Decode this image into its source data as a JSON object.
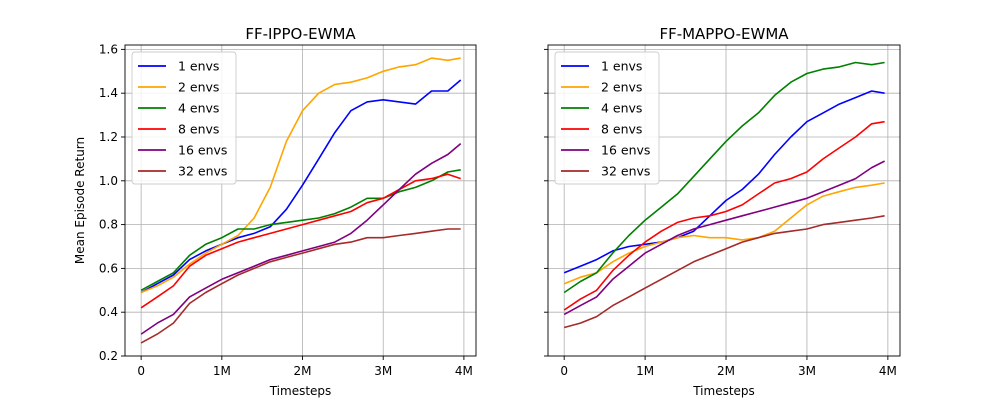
{
  "chart_data": [
    {
      "type": "line",
      "title": "FF-IPPO-EWMA",
      "xlabel": "Timesteps",
      "ylabel": "Mean Episode Return",
      "xlim": [
        -0.2,
        4.15
      ],
      "ylim": [
        0.2,
        1.62
      ],
      "xticks": [
        0,
        1,
        2,
        3,
        4
      ],
      "xtick_labels": [
        "0",
        "1M",
        "2M",
        "3M",
        "4M"
      ],
      "yticks": [
        0.2,
        0.4,
        0.6,
        0.8,
        1.0,
        1.2,
        1.4,
        1.6
      ],
      "ytick_labels": [
        "0.2",
        "0.4",
        "0.6",
        "0.8",
        "1.0",
        "1.2",
        "1.4",
        "1.6"
      ],
      "show_yticklabels": true,
      "grid": true,
      "legend": "top-left",
      "x_units": "million timesteps",
      "series": [
        {
          "name": "1 envs",
          "color": "#0000ff",
          "x": [
            0,
            0.2,
            0.4,
            0.6,
            0.8,
            1.0,
            1.2,
            1.4,
            1.6,
            1.8,
            2.0,
            2.2,
            2.4,
            2.6,
            2.8,
            3.0,
            3.2,
            3.4,
            3.6,
            3.8,
            3.96
          ],
          "y": [
            0.49,
            0.53,
            0.57,
            0.64,
            0.68,
            0.71,
            0.74,
            0.76,
            0.79,
            0.87,
            0.98,
            1.1,
            1.22,
            1.32,
            1.36,
            1.37,
            1.36,
            1.35,
            1.41,
            1.41,
            1.46
          ]
        },
        {
          "name": "2 envs",
          "color": "#ffa500",
          "x": [
            0,
            0.2,
            0.4,
            0.6,
            0.8,
            1.0,
            1.2,
            1.4,
            1.6,
            1.8,
            2.0,
            2.2,
            2.4,
            2.6,
            2.8,
            3.0,
            3.2,
            3.4,
            3.6,
            3.8,
            3.96
          ],
          "y": [
            0.49,
            0.52,
            0.56,
            0.62,
            0.67,
            0.71,
            0.75,
            0.83,
            0.97,
            1.18,
            1.32,
            1.4,
            1.44,
            1.45,
            1.47,
            1.5,
            1.52,
            1.53,
            1.56,
            1.55,
            1.56
          ]
        },
        {
          "name": "4 envs",
          "color": "#008000",
          "x": [
            0,
            0.2,
            0.4,
            0.6,
            0.8,
            1.0,
            1.2,
            1.4,
            1.6,
            1.8,
            2.0,
            2.2,
            2.4,
            2.6,
            2.8,
            3.0,
            3.2,
            3.4,
            3.6,
            3.8,
            3.96
          ],
          "y": [
            0.5,
            0.54,
            0.58,
            0.66,
            0.71,
            0.74,
            0.78,
            0.78,
            0.8,
            0.81,
            0.82,
            0.83,
            0.85,
            0.88,
            0.92,
            0.92,
            0.95,
            0.97,
            1.0,
            1.04,
            1.05
          ]
        },
        {
          "name": "8 envs",
          "color": "#ff0000",
          "x": [
            0,
            0.2,
            0.4,
            0.6,
            0.8,
            1.0,
            1.2,
            1.4,
            1.6,
            1.8,
            2.0,
            2.2,
            2.4,
            2.6,
            2.8,
            3.0,
            3.2,
            3.4,
            3.6,
            3.8,
            3.96
          ],
          "y": [
            0.42,
            0.47,
            0.52,
            0.61,
            0.66,
            0.69,
            0.72,
            0.74,
            0.76,
            0.78,
            0.8,
            0.82,
            0.84,
            0.86,
            0.9,
            0.92,
            0.96,
            1.0,
            1.01,
            1.03,
            1.01
          ]
        },
        {
          "name": "16 envs",
          "color": "#800080",
          "x": [
            0,
            0.2,
            0.4,
            0.6,
            0.8,
            1.0,
            1.2,
            1.4,
            1.6,
            1.8,
            2.0,
            2.2,
            2.4,
            2.6,
            2.8,
            3.0,
            3.2,
            3.4,
            3.6,
            3.8,
            3.96
          ],
          "y": [
            0.3,
            0.35,
            0.39,
            0.47,
            0.51,
            0.55,
            0.58,
            0.61,
            0.64,
            0.66,
            0.68,
            0.7,
            0.72,
            0.76,
            0.82,
            0.89,
            0.96,
            1.03,
            1.08,
            1.12,
            1.17
          ]
        },
        {
          "name": "32 envs",
          "color": "#a52a2a",
          "x": [
            0,
            0.2,
            0.4,
            0.6,
            0.8,
            1.0,
            1.2,
            1.4,
            1.6,
            1.8,
            2.0,
            2.2,
            2.4,
            2.6,
            2.8,
            3.0,
            3.2,
            3.4,
            3.6,
            3.8,
            3.96
          ],
          "y": [
            0.26,
            0.3,
            0.35,
            0.44,
            0.49,
            0.53,
            0.57,
            0.6,
            0.63,
            0.65,
            0.67,
            0.69,
            0.71,
            0.72,
            0.74,
            0.74,
            0.75,
            0.76,
            0.77,
            0.78,
            0.78
          ]
        }
      ]
    },
    {
      "type": "line",
      "title": "FF-MAPPO-EWMA",
      "xlabel": "Timesteps",
      "ylabel": "",
      "xlim": [
        -0.2,
        4.15
      ],
      "ylim": [
        0.2,
        1.62
      ],
      "xticks": [
        0,
        1,
        2,
        3,
        4
      ],
      "xtick_labels": [
        "0",
        "1M",
        "2M",
        "3M",
        "4M"
      ],
      "yticks": [
        0.2,
        0.4,
        0.6,
        0.8,
        1.0,
        1.2,
        1.4,
        1.6
      ],
      "ytick_labels": [
        "",
        "",
        "",
        "",
        "",
        "",
        "",
        ""
      ],
      "show_yticklabels": false,
      "grid": true,
      "legend": "top-left",
      "x_units": "million timesteps",
      "series": [
        {
          "name": "1 envs",
          "color": "#0000ff",
          "x": [
            0,
            0.2,
            0.4,
            0.6,
            0.8,
            1.0,
            1.2,
            1.4,
            1.6,
            1.8,
            2.0,
            2.2,
            2.4,
            2.6,
            2.8,
            3.0,
            3.2,
            3.4,
            3.6,
            3.8,
            3.96
          ],
          "y": [
            0.58,
            0.61,
            0.64,
            0.68,
            0.7,
            0.71,
            0.72,
            0.74,
            0.77,
            0.84,
            0.91,
            0.96,
            1.03,
            1.12,
            1.2,
            1.27,
            1.31,
            1.35,
            1.38,
            1.41,
            1.4
          ]
        },
        {
          "name": "2 envs",
          "color": "#ffa500",
          "x": [
            0,
            0.2,
            0.4,
            0.6,
            0.8,
            1.0,
            1.2,
            1.4,
            1.6,
            1.8,
            2.0,
            2.2,
            2.4,
            2.6,
            2.8,
            3.0,
            3.2,
            3.4,
            3.6,
            3.8,
            3.96
          ],
          "y": [
            0.53,
            0.56,
            0.58,
            0.63,
            0.67,
            0.7,
            0.72,
            0.74,
            0.75,
            0.74,
            0.74,
            0.73,
            0.74,
            0.77,
            0.83,
            0.89,
            0.93,
            0.95,
            0.97,
            0.98,
            0.99
          ]
        },
        {
          "name": "4 envs",
          "color": "#008000",
          "x": [
            0,
            0.2,
            0.4,
            0.6,
            0.8,
            1.0,
            1.2,
            1.4,
            1.6,
            1.8,
            2.0,
            2.2,
            2.4,
            2.6,
            2.8,
            3.0,
            3.2,
            3.4,
            3.6,
            3.8,
            3.96
          ],
          "y": [
            0.49,
            0.54,
            0.58,
            0.67,
            0.75,
            0.82,
            0.88,
            0.94,
            1.02,
            1.1,
            1.18,
            1.25,
            1.31,
            1.39,
            1.45,
            1.49,
            1.51,
            1.52,
            1.54,
            1.53,
            1.54
          ]
        },
        {
          "name": "8 envs",
          "color": "#ff0000",
          "x": [
            0,
            0.2,
            0.4,
            0.6,
            0.8,
            1.0,
            1.2,
            1.4,
            1.6,
            1.8,
            2.0,
            2.2,
            2.4,
            2.6,
            2.8,
            3.0,
            3.2,
            3.4,
            3.6,
            3.8,
            3.96
          ],
          "y": [
            0.41,
            0.46,
            0.5,
            0.59,
            0.66,
            0.72,
            0.77,
            0.81,
            0.83,
            0.84,
            0.86,
            0.89,
            0.94,
            0.99,
            1.01,
            1.04,
            1.1,
            1.15,
            1.2,
            1.26,
            1.27
          ]
        },
        {
          "name": "16 envs",
          "color": "#800080",
          "x": [
            0,
            0.2,
            0.4,
            0.6,
            0.8,
            1.0,
            1.2,
            1.4,
            1.6,
            1.8,
            2.0,
            2.2,
            2.4,
            2.6,
            2.8,
            3.0,
            3.2,
            3.4,
            3.6,
            3.8,
            3.96
          ],
          "y": [
            0.39,
            0.43,
            0.47,
            0.55,
            0.61,
            0.67,
            0.71,
            0.75,
            0.78,
            0.8,
            0.82,
            0.84,
            0.86,
            0.88,
            0.9,
            0.92,
            0.95,
            0.98,
            1.01,
            1.06,
            1.09
          ]
        },
        {
          "name": "32 envs",
          "color": "#a52a2a",
          "x": [
            0,
            0.2,
            0.4,
            0.6,
            0.8,
            1.0,
            1.2,
            1.4,
            1.6,
            1.8,
            2.0,
            2.2,
            2.4,
            2.6,
            2.8,
            3.0,
            3.2,
            3.4,
            3.6,
            3.8,
            3.96
          ],
          "y": [
            0.33,
            0.35,
            0.38,
            0.43,
            0.47,
            0.51,
            0.55,
            0.59,
            0.63,
            0.66,
            0.69,
            0.72,
            0.74,
            0.76,
            0.77,
            0.78,
            0.8,
            0.81,
            0.82,
            0.83,
            0.84
          ]
        }
      ]
    }
  ]
}
